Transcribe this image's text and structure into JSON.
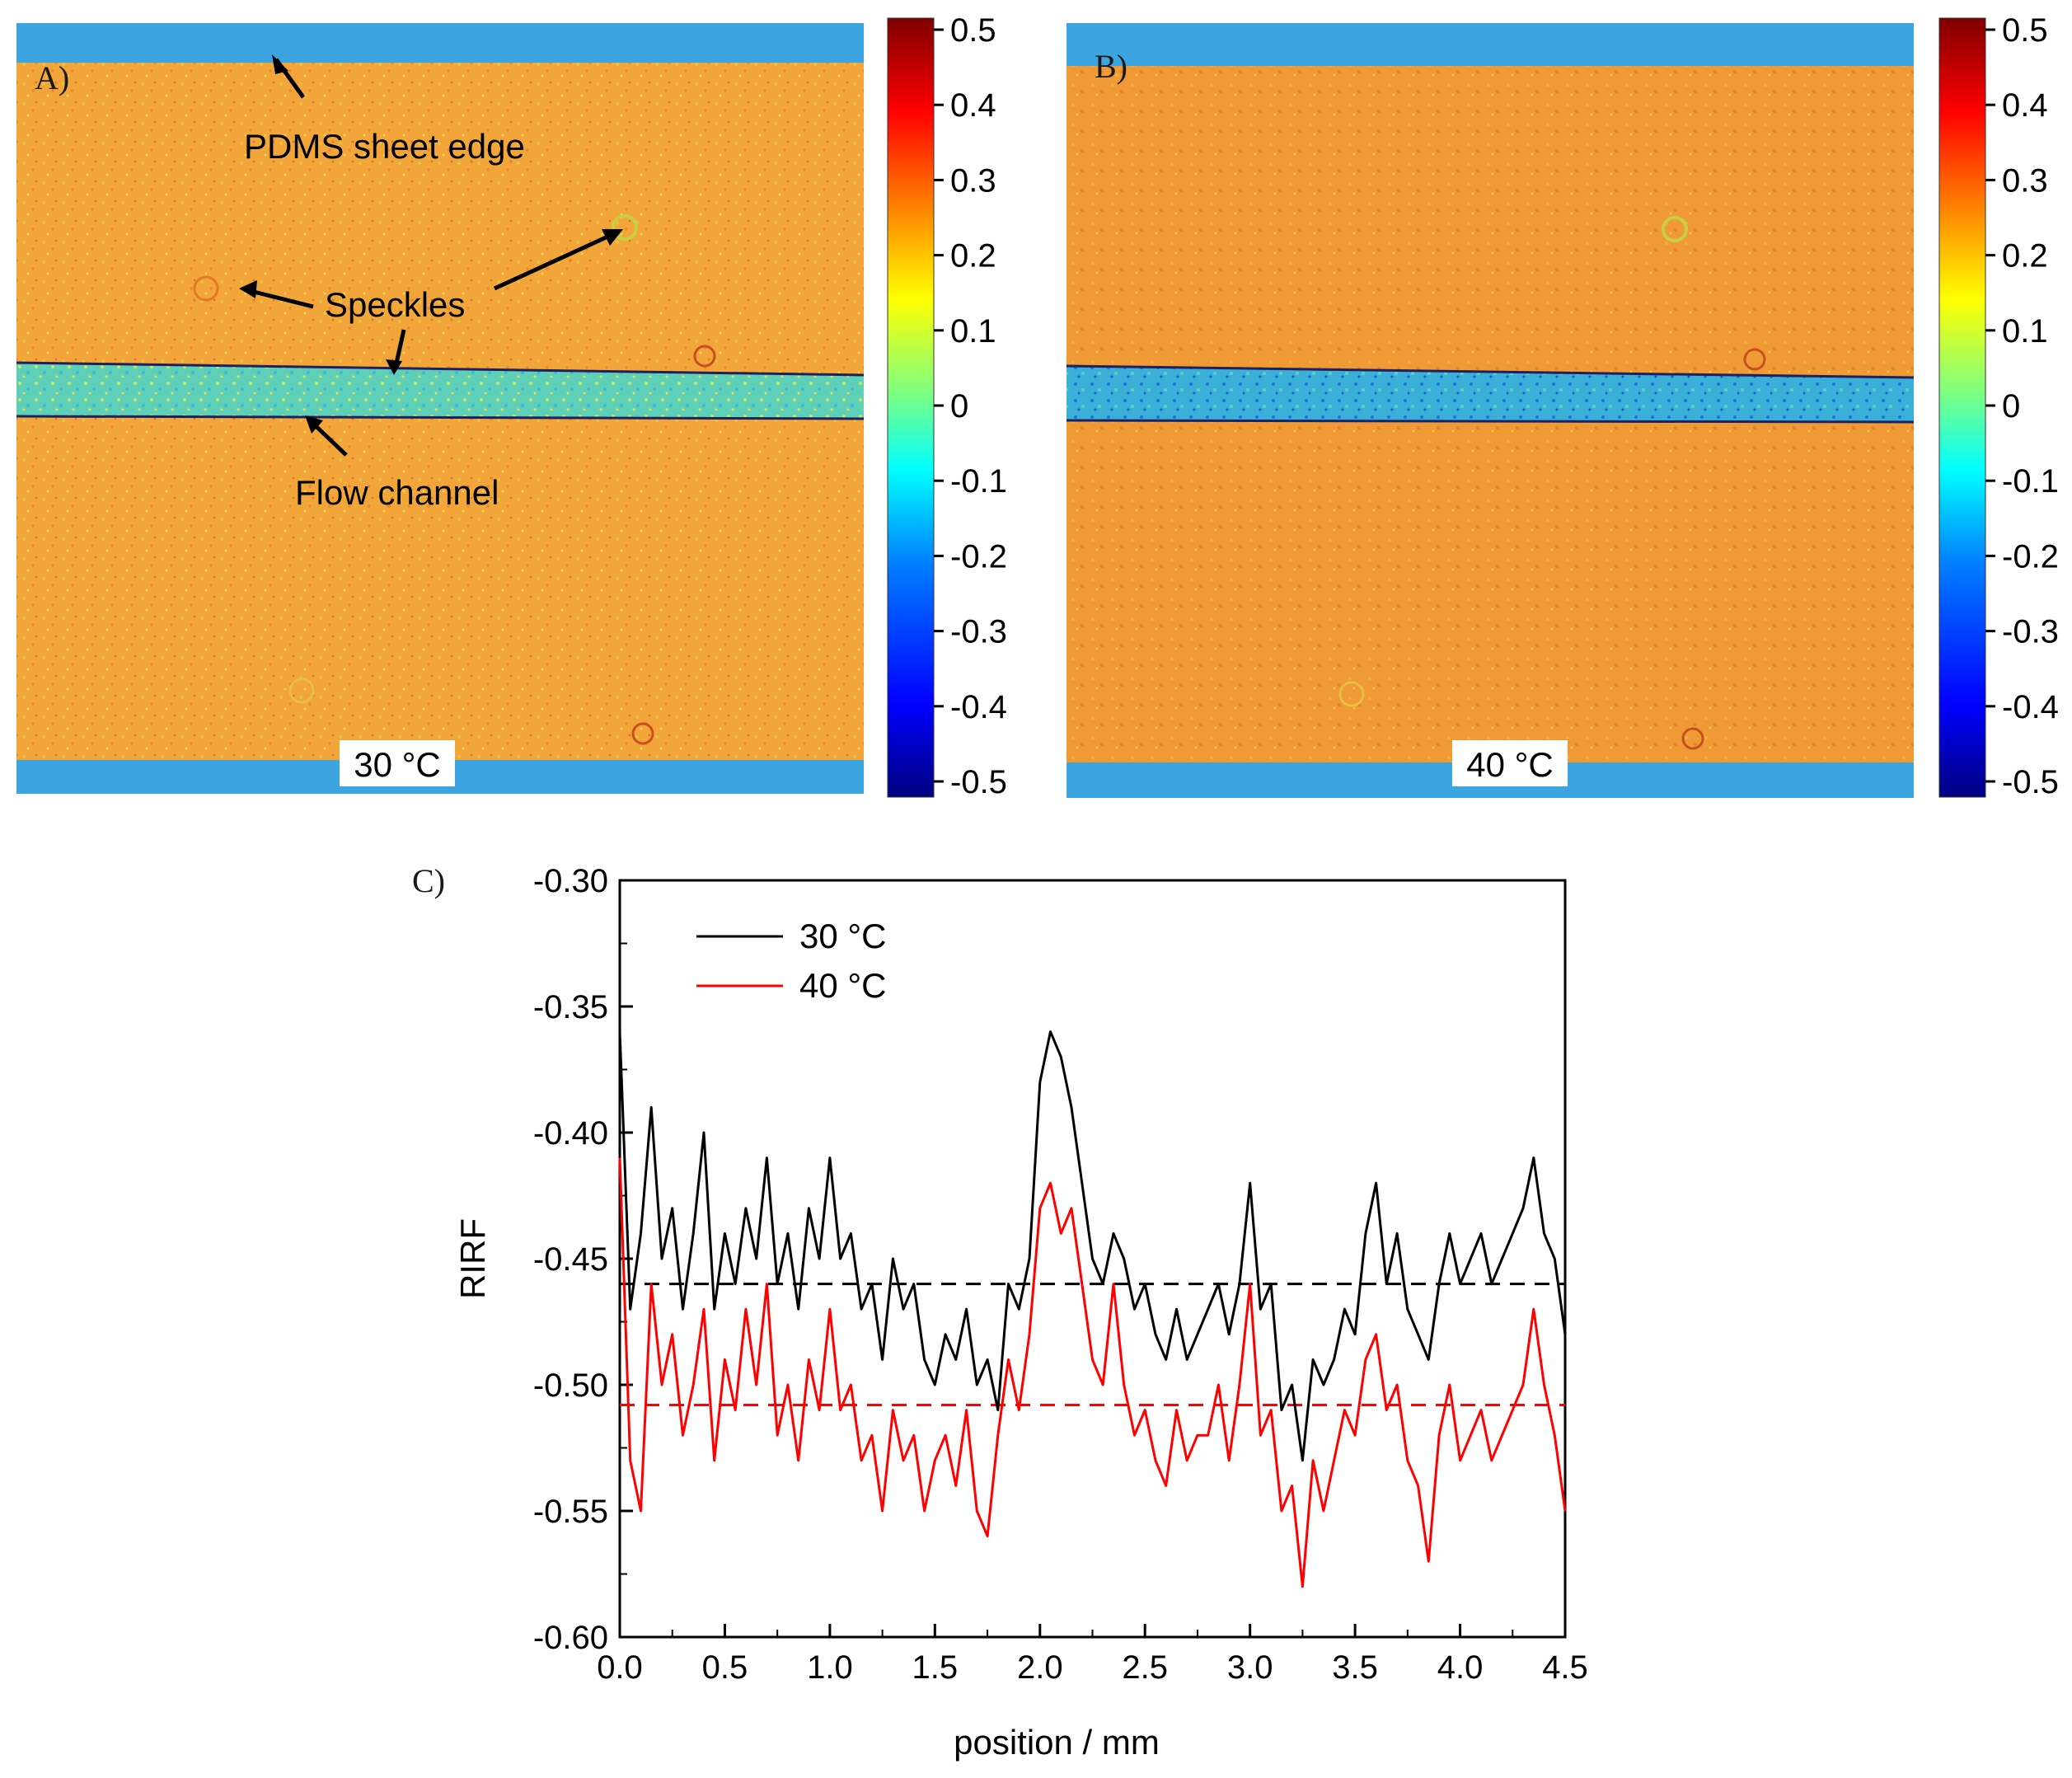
{
  "panels": {
    "A": {
      "letter": "A)",
      "temp_label": "30 °C"
    },
    "B": {
      "letter": "B)",
      "temp_label": "40 °C"
    },
    "C": {
      "letter": "C)"
    }
  },
  "annotations": {
    "pdms": "PDMS sheet edge",
    "speckles": "Speckles",
    "flow": "Flow channel"
  },
  "colorbar": {
    "ticks": [
      "0.5",
      "0.4",
      "0.3",
      "0.2",
      "0.1",
      "0",
      "-0.1",
      "-0.2",
      "-0.3",
      "-0.4",
      "-0.5"
    ],
    "range": [
      -0.5,
      0.5
    ],
    "colors": [
      "#00007f",
      "#0000ff",
      "#007fff",
      "#00ffff",
      "#7fff7f",
      "#ffff00",
      "#ff7f00",
      "#ff0000",
      "#7f0000"
    ]
  },
  "heatmap_colors": {
    "field_30": "#f2a63a",
    "field_40": "#ef9a35",
    "edge": "#3ca4e0",
    "channel_30": "#5fd0b8",
    "channel_40": "#3ab0d8"
  },
  "chart_data": {
    "type": "line",
    "xlabel": "position / mm",
    "ylabel": "RIRF",
    "xlim": [
      0.0,
      4.5
    ],
    "ylim": [
      -0.6,
      -0.3
    ],
    "xticks": [
      "0.0",
      "0.5",
      "1.0",
      "1.5",
      "2.0",
      "2.5",
      "3.0",
      "3.5",
      "4.0",
      "4.5"
    ],
    "yticks": [
      "-0.30",
      "-0.35",
      "-0.40",
      "-0.45",
      "-0.50",
      "-0.55",
      "-0.60"
    ],
    "legend_position": "top-left",
    "series": [
      {
        "name": "30 °C",
        "color": "#000000",
        "mean": -0.46,
        "x": [
          0.0,
          0.05,
          0.1,
          0.15,
          0.2,
          0.25,
          0.3,
          0.35,
          0.4,
          0.45,
          0.5,
          0.55,
          0.6,
          0.65,
          0.7,
          0.75,
          0.8,
          0.85,
          0.9,
          0.95,
          1.0,
          1.05,
          1.1,
          1.15,
          1.2,
          1.25,
          1.3,
          1.35,
          1.4,
          1.45,
          1.5,
          1.55,
          1.6,
          1.65,
          1.7,
          1.75,
          1.8,
          1.85,
          1.9,
          1.95,
          2.0,
          2.05,
          2.1,
          2.15,
          2.2,
          2.25,
          2.3,
          2.35,
          2.4,
          2.45,
          2.5,
          2.55,
          2.6,
          2.65,
          2.7,
          2.75,
          2.8,
          2.85,
          2.9,
          2.95,
          3.0,
          3.05,
          3.1,
          3.15,
          3.2,
          3.25,
          3.3,
          3.35,
          3.4,
          3.45,
          3.5,
          3.55,
          3.6,
          3.65,
          3.7,
          3.75,
          3.8,
          3.85,
          3.9,
          3.95,
          4.0,
          4.05,
          4.1,
          4.15,
          4.2,
          4.25,
          4.3,
          4.35,
          4.4,
          4.45,
          4.5
        ],
        "y": [
          -0.36,
          -0.47,
          -0.44,
          -0.39,
          -0.45,
          -0.43,
          -0.47,
          -0.44,
          -0.4,
          -0.47,
          -0.44,
          -0.46,
          -0.43,
          -0.45,
          -0.41,
          -0.46,
          -0.44,
          -0.47,
          -0.43,
          -0.45,
          -0.41,
          -0.45,
          -0.44,
          -0.47,
          -0.46,
          -0.49,
          -0.45,
          -0.47,
          -0.46,
          -0.49,
          -0.5,
          -0.48,
          -0.49,
          -0.47,
          -0.5,
          -0.49,
          -0.51,
          -0.46,
          -0.47,
          -0.45,
          -0.38,
          -0.36,
          -0.37,
          -0.39,
          -0.42,
          -0.45,
          -0.46,
          -0.44,
          -0.45,
          -0.47,
          -0.46,
          -0.48,
          -0.49,
          -0.47,
          -0.49,
          -0.48,
          -0.47,
          -0.46,
          -0.48,
          -0.46,
          -0.42,
          -0.47,
          -0.46,
          -0.51,
          -0.5,
          -0.53,
          -0.49,
          -0.5,
          -0.49,
          -0.47,
          -0.48,
          -0.44,
          -0.42,
          -0.46,
          -0.44,
          -0.47,
          -0.48,
          -0.49,
          -0.46,
          -0.44,
          -0.46,
          -0.45,
          -0.44,
          -0.46,
          -0.45,
          -0.44,
          -0.43,
          -0.41,
          -0.44,
          -0.45,
          -0.48
        ]
      },
      {
        "name": "40 °C",
        "color": "#ff0000",
        "mean": -0.508,
        "x": [
          0.0,
          0.05,
          0.1,
          0.15,
          0.2,
          0.25,
          0.3,
          0.35,
          0.4,
          0.45,
          0.5,
          0.55,
          0.6,
          0.65,
          0.7,
          0.75,
          0.8,
          0.85,
          0.9,
          0.95,
          1.0,
          1.05,
          1.1,
          1.15,
          1.2,
          1.25,
          1.3,
          1.35,
          1.4,
          1.45,
          1.5,
          1.55,
          1.6,
          1.65,
          1.7,
          1.75,
          1.8,
          1.85,
          1.9,
          1.95,
          2.0,
          2.05,
          2.1,
          2.15,
          2.2,
          2.25,
          2.3,
          2.35,
          2.4,
          2.45,
          2.5,
          2.55,
          2.6,
          2.65,
          2.7,
          2.75,
          2.8,
          2.85,
          2.9,
          2.95,
          3.0,
          3.05,
          3.1,
          3.15,
          3.2,
          3.25,
          3.3,
          3.35,
          3.4,
          3.45,
          3.5,
          3.55,
          3.6,
          3.65,
          3.7,
          3.75,
          3.8,
          3.85,
          3.9,
          3.95,
          4.0,
          4.05,
          4.1,
          4.15,
          4.2,
          4.25,
          4.3,
          4.35,
          4.4,
          4.45,
          4.5
        ],
        "y": [
          -0.41,
          -0.53,
          -0.55,
          -0.46,
          -0.5,
          -0.48,
          -0.52,
          -0.5,
          -0.47,
          -0.53,
          -0.49,
          -0.51,
          -0.47,
          -0.5,
          -0.46,
          -0.52,
          -0.5,
          -0.53,
          -0.49,
          -0.51,
          -0.47,
          -0.51,
          -0.5,
          -0.53,
          -0.52,
          -0.55,
          -0.51,
          -0.53,
          -0.52,
          -0.55,
          -0.53,
          -0.52,
          -0.54,
          -0.51,
          -0.55,
          -0.56,
          -0.52,
          -0.49,
          -0.51,
          -0.48,
          -0.43,
          -0.42,
          -0.44,
          -0.43,
          -0.46,
          -0.49,
          -0.5,
          -0.46,
          -0.5,
          -0.52,
          -0.51,
          -0.53,
          -0.54,
          -0.51,
          -0.53,
          -0.52,
          -0.52,
          -0.5,
          -0.53,
          -0.5,
          -0.46,
          -0.52,
          -0.51,
          -0.55,
          -0.54,
          -0.58,
          -0.53,
          -0.55,
          -0.53,
          -0.51,
          -0.52,
          -0.49,
          -0.48,
          -0.51,
          -0.5,
          -0.53,
          -0.54,
          -0.57,
          -0.52,
          -0.5,
          -0.53,
          -0.52,
          -0.51,
          -0.53,
          -0.52,
          -0.51,
          -0.5,
          -0.47,
          -0.5,
          -0.52,
          -0.55
        ]
      }
    ]
  }
}
